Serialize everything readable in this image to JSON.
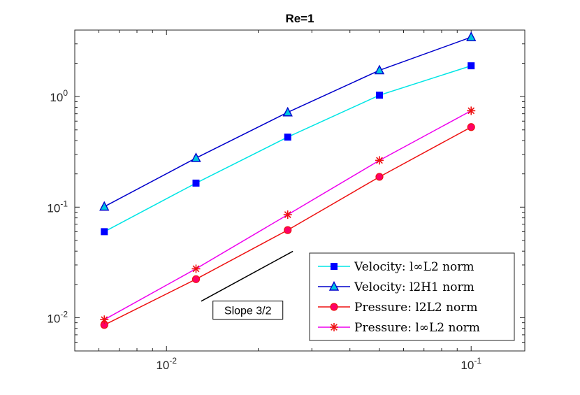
{
  "chart_data": {
    "type": "line",
    "title": "Re=1",
    "xscale": "log",
    "yscale": "log",
    "xlim": [
      0.005,
      0.15
    ],
    "ylim": [
      0.005,
      4
    ],
    "xlabel": "",
    "ylabel": "",
    "x": [
      0.00625,
      0.0125,
      0.025,
      0.05,
      0.1
    ],
    "x_ticks": [
      {
        "value": 0.01,
        "base": "10",
        "exp": "-2"
      },
      {
        "value": 0.1,
        "base": "10",
        "exp": "-1"
      }
    ],
    "y_ticks": [
      {
        "value": 0.01,
        "base": "10",
        "exp": "-2"
      },
      {
        "value": 0.1,
        "base": "10",
        "exp": "-1"
      },
      {
        "value": 1,
        "base": "10",
        "exp": "0"
      }
    ],
    "series": [
      {
        "name": "Velocity: l∞L2 norm",
        "key": "vel-linf",
        "line_color": "#00e5e5",
        "marker": "square",
        "marker_fill": "#0000ff",
        "marker_edge": "#0000ff",
        "values": [
          0.06,
          0.165,
          0.43,
          1.03,
          1.9
        ]
      },
      {
        "name": "Velocity: l2H1 norm",
        "key": "vel-h1",
        "line_color": "#0000cc",
        "marker": "triangle",
        "marker_fill": "#00c8e0",
        "marker_edge": "#0000cc",
        "values": [
          0.101,
          0.278,
          0.72,
          1.73,
          3.45
        ]
      },
      {
        "name": "Pressure: l2L2 norm",
        "key": "pres-l2",
        "line_color": "#ee1111",
        "marker": "circle",
        "marker_fill": "#ff0066",
        "marker_edge": "#ee1111",
        "values": [
          0.0086,
          0.0223,
          0.062,
          0.188,
          0.53
        ]
      },
      {
        "name": "Pressure: l∞L2 norm",
        "key": "pres-linf",
        "line_color": "#ee00ee",
        "marker": "asterisk",
        "marker_fill": "none",
        "marker_edge": "#ee1111",
        "values": [
          0.0096,
          0.0277,
          0.0855,
          0.265,
          0.745
        ]
      }
    ],
    "annotation": {
      "text": "Slope 3/2",
      "slope": 1.5,
      "x_start": 0.013,
      "x_end": 0.026,
      "y_start": 0.0141,
      "label_x": 0.0185,
      "label_y": 0.0117
    },
    "grid": false,
    "legend_position": "bottom-right"
  }
}
